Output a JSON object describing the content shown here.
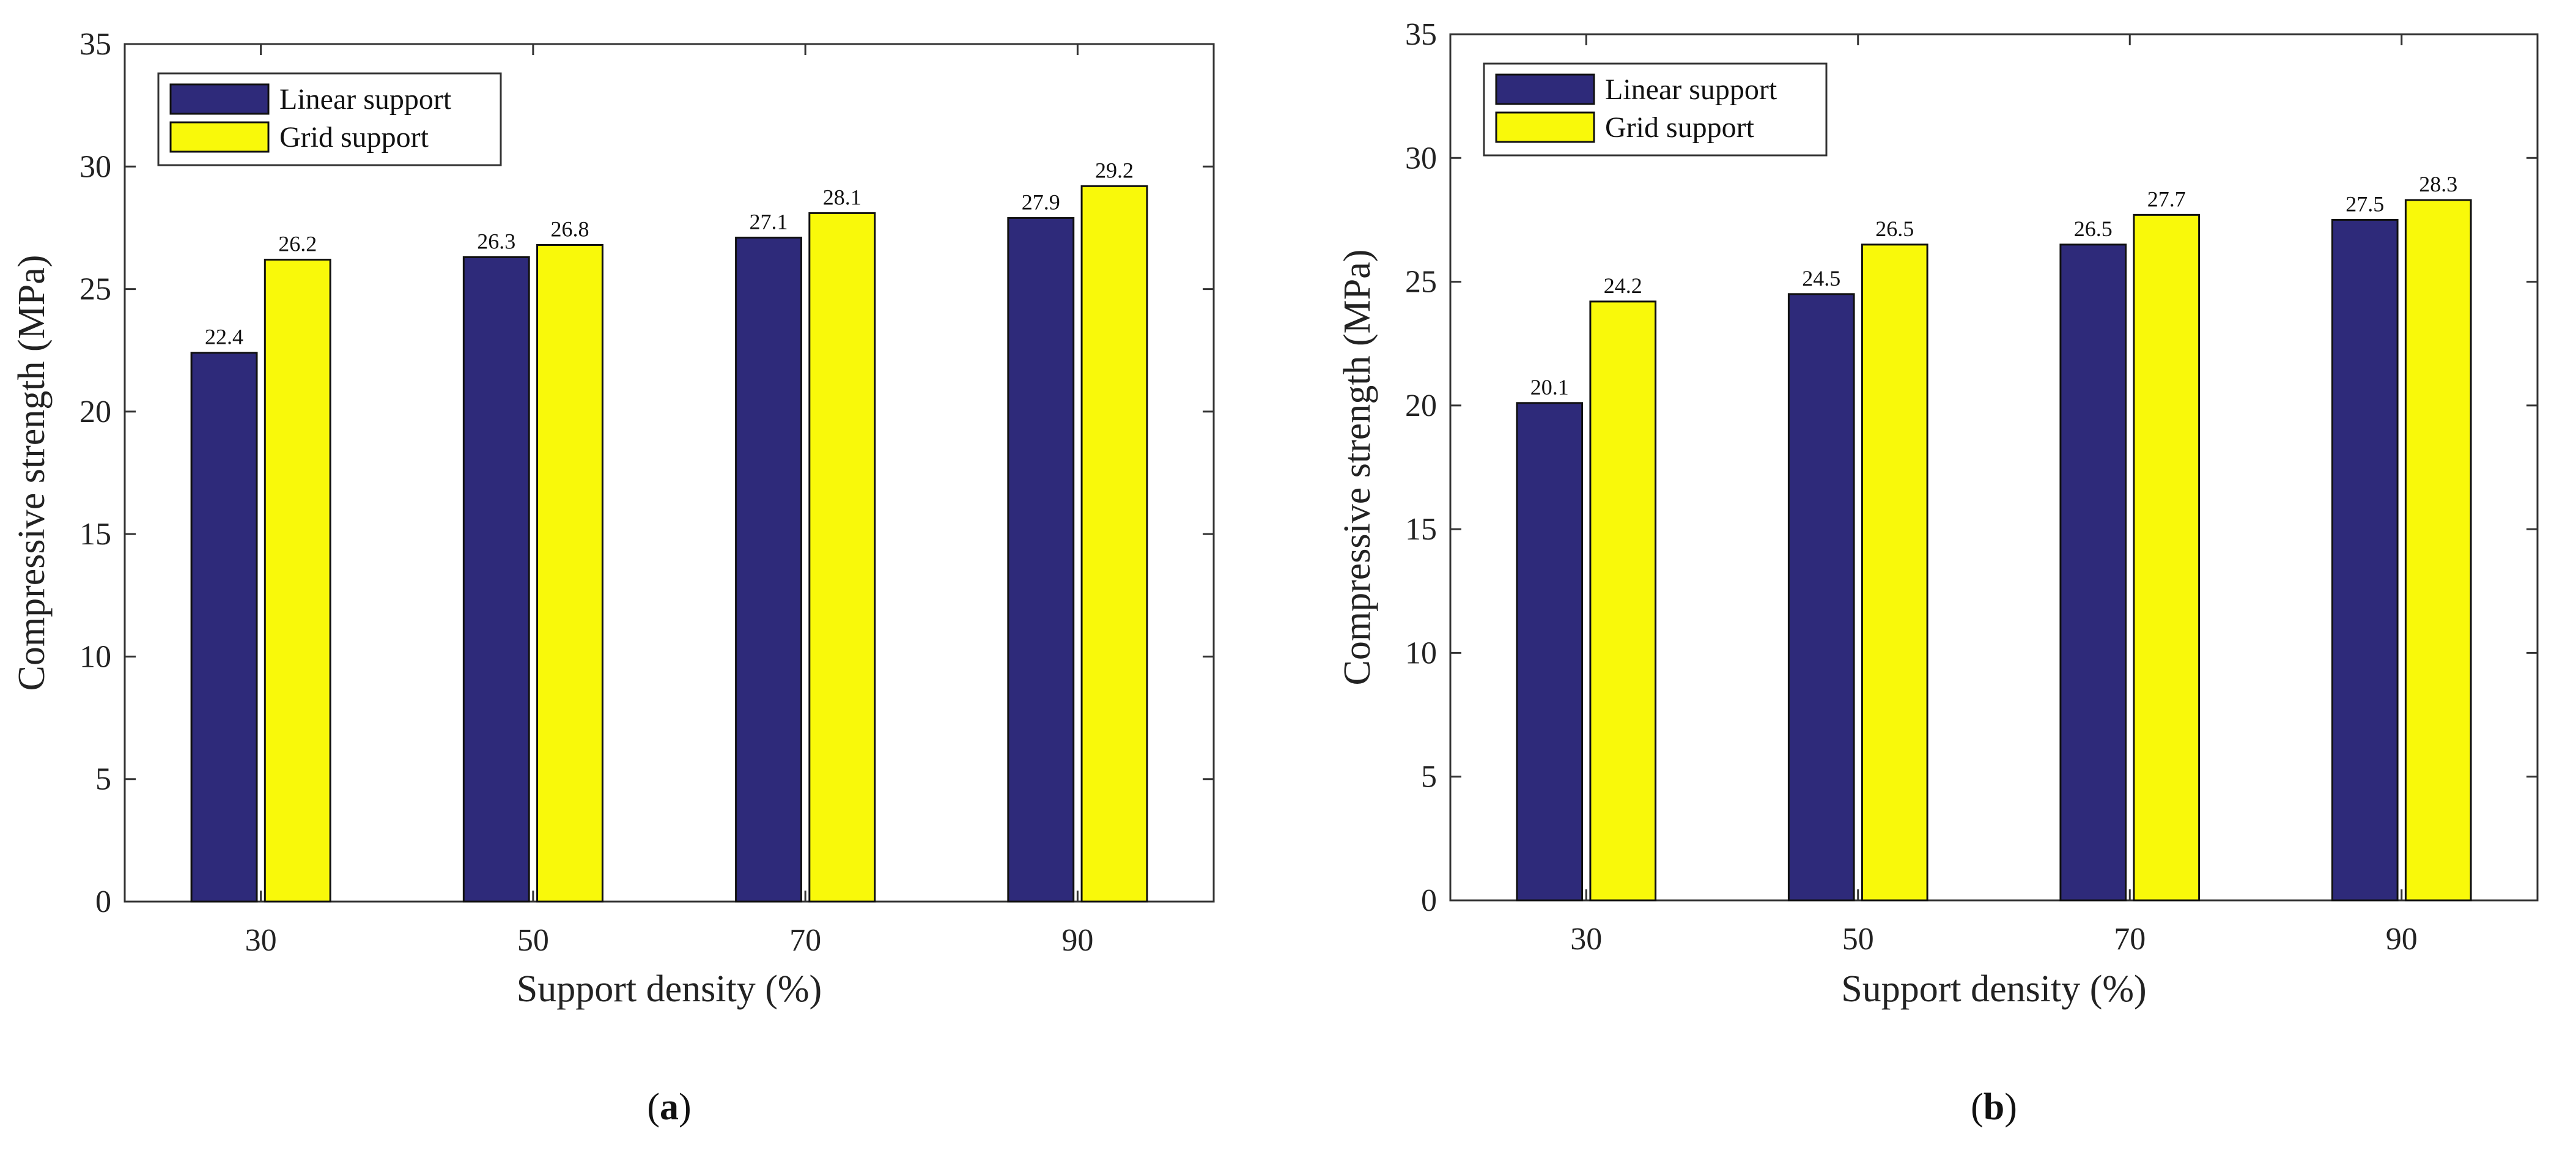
{
  "colors": {
    "linear": "#2e2a7a",
    "grid": "#f9f90a",
    "axis": "#333333",
    "bar_stroke": "#111111"
  },
  "chart_data": [
    {
      "type": "bar",
      "panel_label": "a",
      "categories": [
        "30",
        "50",
        "70",
        "90"
      ],
      "xlabel": "Support density (%)",
      "ylabel": "Compressive strength (MPa)",
      "ylim": [
        0,
        35
      ],
      "yticks": [
        "0",
        "5",
        "10",
        "15",
        "20",
        "25",
        "30",
        "35"
      ],
      "legend_position": "top-left",
      "grid": false,
      "series": [
        {
          "name": "Linear support",
          "values": [
            22.4,
            26.3,
            27.1,
            27.9
          ],
          "labels": [
            "22.4",
            "26.3",
            "27.1",
            "27.9"
          ]
        },
        {
          "name": "Grid support",
          "values": [
            26.2,
            26.8,
            28.1,
            29.2
          ],
          "labels": [
            "26.2",
            "26.8",
            "28.1",
            "29.2"
          ]
        }
      ]
    },
    {
      "type": "bar",
      "panel_label": "b",
      "categories": [
        "30",
        "50",
        "70",
        "90"
      ],
      "xlabel": "Support density (%)",
      "ylabel": "Compressive strength (MPa)",
      "ylim": [
        0,
        35
      ],
      "yticks": [
        "0",
        "5",
        "10",
        "15",
        "20",
        "25",
        "30",
        "35"
      ],
      "legend_position": "top-left",
      "grid": false,
      "series": [
        {
          "name": "Linear support",
          "values": [
            20.1,
            24.5,
            26.5,
            27.5
          ],
          "labels": [
            "20.1",
            "24.5",
            "26.5",
            "27.5"
          ]
        },
        {
          "name": "Grid support",
          "values": [
            24.2,
            26.5,
            27.7,
            28.3
          ],
          "labels": [
            "24.2",
            "26.5",
            "27.7",
            "28.3"
          ]
        }
      ]
    }
  ]
}
